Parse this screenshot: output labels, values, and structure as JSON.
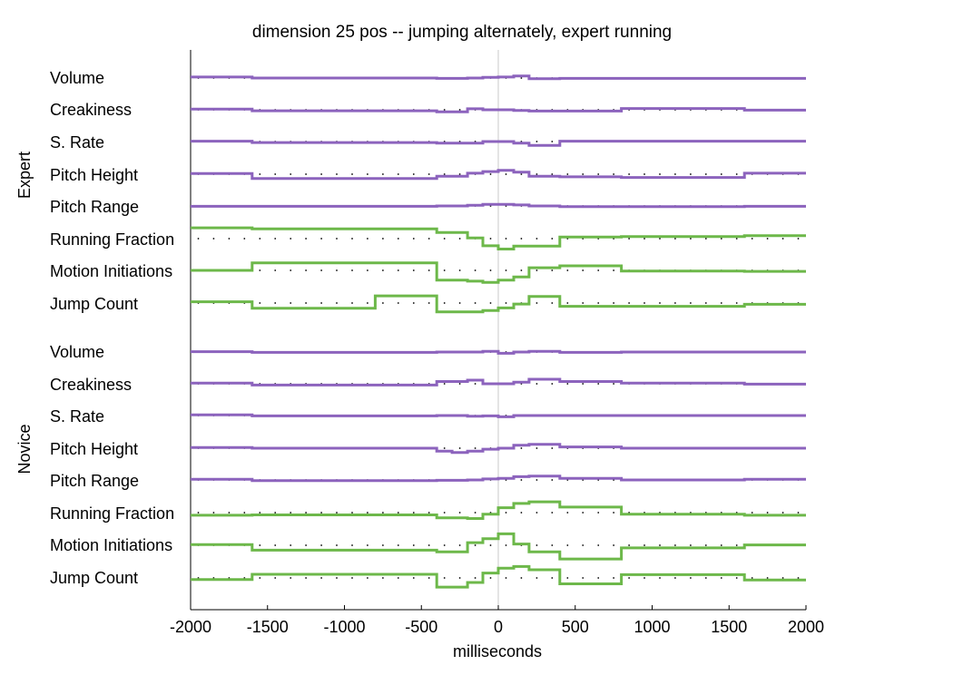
{
  "chart_data": {
    "type": "line",
    "title": "dimension 25 pos --  jumping alternately, expert running",
    "xlabel": "milliseconds",
    "xlim": [
      -2000,
      2000
    ],
    "xticks": [
      "-2000",
      "-1500",
      "-1000",
      "-500",
      "0",
      "500",
      "1000",
      "1500",
      "2000"
    ],
    "x_boundaries": [
      -2000,
      -1600,
      -800,
      -400,
      -300,
      -200,
      -100,
      0,
      100,
      200,
      400,
      800,
      1600,
      2000
    ],
    "colors": {
      "prosody": "#8c63bd",
      "action": "#6db84a",
      "zero_line": "#c8c8c8",
      "dots": "#000000"
    },
    "panels": [
      {
        "name": "Expert",
        "rows": [
          {
            "label": "Volume",
            "kind": "prosody",
            "values": [
              0.3,
              0.0,
              0.0,
              -0.1,
              -0.1,
              0.0,
              0.2,
              0.3,
              0.6,
              -0.2,
              -0.1,
              -0.1,
              -0.1
            ]
          },
          {
            "label": "Creakiness",
            "kind": "prosody",
            "values": [
              0.2,
              -0.3,
              -0.3,
              -0.6,
              -0.6,
              0.3,
              0.0,
              0.0,
              -0.2,
              -0.4,
              -0.4,
              0.4,
              -0.1
            ]
          },
          {
            "label": "S. Rate",
            "kind": "prosody",
            "values": [
              0.1,
              -0.3,
              -0.3,
              -0.5,
              -0.5,
              -0.5,
              0.0,
              0.0,
              -0.5,
              -1.2,
              0.1,
              0.1,
              0.1
            ]
          },
          {
            "label": "Pitch Height",
            "kind": "prosody",
            "values": [
              0.2,
              -1.3,
              -1.3,
              -0.6,
              -0.6,
              0.3,
              0.8,
              1.2,
              0.6,
              -0.6,
              -0.8,
              -1.0,
              0.3
            ]
          },
          {
            "label": "Pitch Range",
            "kind": "prosody",
            "values": [
              -0.1,
              -0.1,
              -0.1,
              0.0,
              0.0,
              0.2,
              0.5,
              0.5,
              0.3,
              0.0,
              -0.2,
              -0.2,
              -0.1
            ]
          },
          {
            "label": "Running Fraction",
            "kind": "action",
            "values": [
              3.3,
              3.0,
              3.0,
              1.9,
              1.9,
              0.2,
              -2.2,
              -3.2,
              -2.3,
              -2.3,
              0.5,
              0.6,
              0.9
            ]
          },
          {
            "label": "Motion Initiations",
            "kind": "action",
            "values": [
              0.0,
              2.3,
              2.3,
              -3.0,
              -3.0,
              -3.3,
              -3.7,
              -3.0,
              -2.0,
              0.8,
              1.4,
              -0.2,
              -0.3
            ]
          },
          {
            "label": "Jump Count",
            "kind": "action",
            "values": [
              0.4,
              -1.6,
              2.2,
              -2.7,
              -2.7,
              -2.7,
              -2.3,
              -1.5,
              -0.3,
              2.0,
              -1.0,
              -1.0,
              -0.4
            ]
          }
        ]
      },
      {
        "name": "Novice",
        "rows": [
          {
            "label": "Volume",
            "kind": "prosody",
            "values": [
              0.1,
              -0.1,
              -0.1,
              0.0,
              0.0,
              0.0,
              0.2,
              -0.4,
              0.0,
              0.2,
              -0.1,
              0.0,
              0.0
            ]
          },
          {
            "label": "Creakiness",
            "kind": "prosody",
            "values": [
              0.2,
              -0.4,
              -0.4,
              0.7,
              0.7,
              1.1,
              0.0,
              0.0,
              0.5,
              1.4,
              0.7,
              0.2,
              -0.1
            ]
          },
          {
            "label": "S. Rate",
            "kind": "prosody",
            "values": [
              0.2,
              -0.1,
              -0.1,
              0.0,
              0.0,
              -0.2,
              -0.1,
              -0.4,
              0.0,
              0.0,
              0.0,
              0.0,
              0.0
            ]
          },
          {
            "label": "Pitch Height",
            "kind": "prosody",
            "values": [
              0.2,
              0.0,
              0.0,
              -0.9,
              -1.3,
              -0.9,
              -0.3,
              0.0,
              0.9,
              1.2,
              0.4,
              0.0,
              0.0
            ]
          },
          {
            "label": "Pitch Range",
            "kind": "prosody",
            "values": [
              0.2,
              -0.2,
              -0.2,
              -0.1,
              -0.1,
              0.0,
              0.3,
              0.5,
              1.0,
              1.2,
              0.5,
              0.0,
              0.2
            ]
          },
          {
            "label": "Running Fraction",
            "kind": "action",
            "values": [
              -0.8,
              -0.7,
              -0.7,
              -1.6,
              -1.6,
              -1.8,
              -0.5,
              1.5,
              2.8,
              3.3,
              1.7,
              -0.5,
              -0.8
            ]
          },
          {
            "label": "Motion Initiations",
            "kind": "action",
            "values": [
              0.2,
              -1.5,
              -1.5,
              -2.0,
              -2.0,
              0.8,
              2.0,
              3.5,
              0.4,
              -2.0,
              -4.2,
              -0.8,
              0.1
            ]
          },
          {
            "label": "Jump Count",
            "kind": "action",
            "values": [
              -0.5,
              1.1,
              1.1,
              -2.8,
              -2.8,
              -1.4,
              1.5,
              3.0,
              3.5,
              2.5,
              -1.8,
              1.0,
              -0.6
            ]
          }
        ]
      }
    ]
  }
}
